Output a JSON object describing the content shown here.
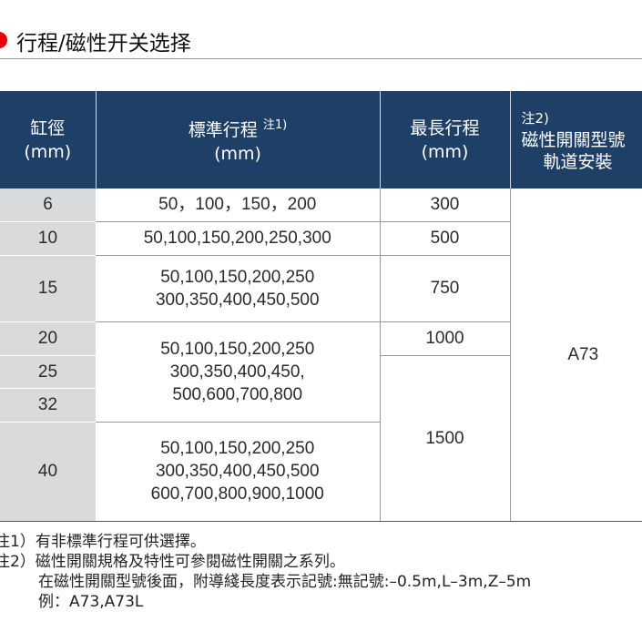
{
  "section": {
    "title": "行程/磁性开关选择"
  },
  "table": {
    "headers": {
      "bore": [
        "缸徑",
        "(mm)"
      ],
      "stroke": [
        "標準行程",
        "(mm)"
      ],
      "stroke_note": "注1)",
      "max": [
        "最長行程",
        "(mm)"
      ],
      "switch_note": "注2)",
      "switch": [
        "磁性開關型號",
        "軌道安裝"
      ]
    },
    "rows": [
      {
        "bore": "6",
        "strokes": [
          "50，100，150，200"
        ],
        "max": "300"
      },
      {
        "bore": "10",
        "strokes": [
          "50,100,150,200,250,300"
        ],
        "max": "500"
      },
      {
        "bore": "15",
        "strokes": [
          "50,100,150,200,250",
          "300,350,400,450,500"
        ],
        "max": "750"
      },
      {
        "bore": "20",
        "max": "1000"
      },
      {
        "bore": "25"
      },
      {
        "bore": "32",
        "max": "1500"
      },
      {
        "bore": "40",
        "strokes": [
          "50,100,150,200,250",
          "300,350,400,450,500",
          "600,700,800,900,1000"
        ]
      }
    ],
    "shared_strokes_20_32": [
      "50,100,150,200,250",
      "300,350,400,450,",
      "500,600,700,800"
    ],
    "switch_model": "A73"
  },
  "notes": [
    "注1）有非標準行程可供選擇。",
    "注2）磁性開關規格及特性可參閱磁性開關之系列。",
    "在磁性開關型號後面，附導綫長度表示記號:無記號:–0.5m,L–3m,Z–5m",
    "例：A73,A73L"
  ]
}
